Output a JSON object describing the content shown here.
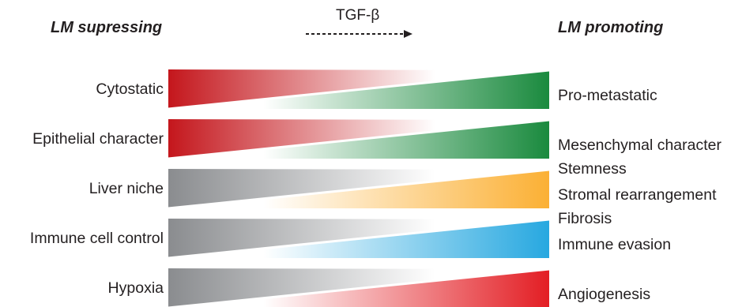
{
  "header": {
    "left_title": "LM supressing",
    "right_title": "LM promoting",
    "arrow_label": "TGF-β"
  },
  "rows": [
    {
      "left": "Cytostatic",
      "right": [
        "Pro-metastatic"
      ],
      "left_color": "#c4161c",
      "right_color": "#1a8a3e"
    },
    {
      "left": "Epithelial character",
      "right": [
        "Mesenchymal character",
        "Stemness"
      ],
      "left_color": "#c4161c",
      "right_color": "#1a8a3e"
    },
    {
      "left": "Liver niche",
      "right": [
        "Stromal rearrangement",
        "Fibrosis"
      ],
      "left_color": "#8a8c8f",
      "right_color": "#fbb034"
    },
    {
      "left": "Immune cell control",
      "right": [
        "Immune evasion"
      ],
      "left_color": "#8a8c8f",
      "right_color": "#27a8e0"
    },
    {
      "left": "Hypoxia",
      "right": [
        "Angiogenesis"
      ],
      "left_color": "#8a8c8f",
      "right_color": "#e31e24"
    }
  ]
}
